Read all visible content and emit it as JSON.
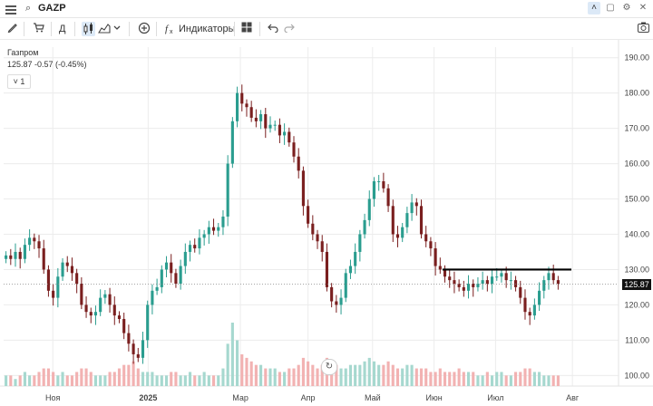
{
  "header": {
    "symbol": "GAZP"
  },
  "toolbar": {
    "interval_label": "Д",
    "indicators_label": "Индикаторы"
  },
  "legend": {
    "name": "Газпром",
    "values": "125.87  -0.57 (-0.45%)",
    "collapse": "1"
  },
  "price_tag": "125.87",
  "colors": {
    "up": "#2a9d8f",
    "down": "#7a1f1f",
    "vol_up": "#a6d8cf",
    "vol_down": "#f2b2b2",
    "resistance": "#000000"
  },
  "chart_data": {
    "type": "candlestick",
    "y_ticks": [
      "190.00",
      "180.00",
      "170.00",
      "160.00",
      "150.00",
      "140.00",
      "130.00",
      "120.00",
      "110.00",
      "100.00"
    ],
    "ylim": [
      97,
      193
    ],
    "x_ticks": [
      "Ноя",
      "2025",
      "Мар",
      "Апр",
      "Май",
      "Июн",
      "Июл",
      "Авг"
    ],
    "last_price": 125.87,
    "resistance_level": 130,
    "closes": [
      134,
      133,
      135,
      133,
      137,
      139,
      138,
      136,
      130,
      124,
      122,
      128,
      132,
      131,
      129,
      126,
      120,
      118,
      117,
      118,
      122,
      123,
      120,
      117,
      116,
      112,
      109,
      106,
      105,
      110,
      120,
      124,
      125,
      130,
      132,
      129,
      126,
      131,
      135,
      137,
      136,
      139,
      140,
      142,
      141,
      142,
      145,
      160,
      172,
      180,
      177,
      176,
      173,
      172,
      174,
      170,
      171,
      171,
      168,
      169,
      166,
      162,
      158,
      148,
      143,
      140,
      138,
      135,
      125,
      121,
      120,
      122,
      129,
      131,
      135,
      140,
      144,
      150,
      155,
      155,
      153,
      148,
      140,
      139,
      142,
      146,
      149,
      148,
      140,
      138,
      136,
      131,
      130,
      128,
      127,
      126,
      125,
      124,
      126,
      125,
      126,
      127,
      126,
      128,
      128,
      129,
      127,
      127,
      125,
      122,
      118,
      117,
      120,
      124,
      127,
      129,
      127,
      126
    ],
    "volumes": [
      3,
      3,
      2,
      3,
      4,
      3,
      3,
      4,
      5,
      5,
      4,
      3,
      4,
      3,
      3,
      4,
      5,
      5,
      4,
      3,
      3,
      3,
      4,
      4,
      5,
      6,
      6,
      7,
      5,
      4,
      4,
      4,
      3,
      3,
      3,
      4,
      4,
      3,
      3,
      4,
      3,
      3,
      4,
      3,
      3,
      3,
      5,
      12,
      18,
      13,
      9,
      8,
      7,
      6,
      6,
      5,
      5,
      5,
      4,
      4,
      5,
      5,
      6,
      8,
      7,
      6,
      5,
      6,
      8,
      7,
      6,
      5,
      5,
      6,
      6,
      6,
      7,
      8,
      7,
      6,
      6,
      7,
      6,
      5,
      5,
      6,
      6,
      5,
      5,
      5,
      4,
      4,
      5,
      4,
      4,
      4,
      5,
      4,
      4,
      4,
      3,
      3,
      4,
      3,
      4,
      4,
      3,
      3,
      4,
      4,
      5,
      5,
      4,
      4,
      3,
      3,
      3,
      3
    ],
    "x_range": [
      "2024-10",
      "2025-07"
    ]
  }
}
